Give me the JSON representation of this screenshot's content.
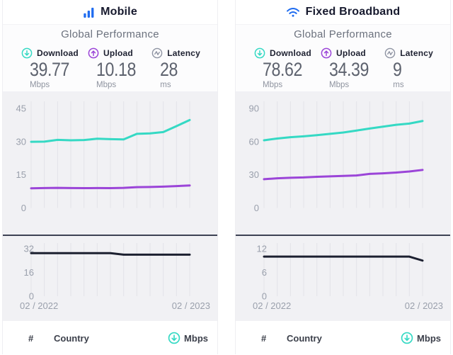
{
  "theme": {
    "brand_blue": "#1f6cf0",
    "download_teal": "#35d9c4",
    "upload_purple": "#9b45d8",
    "latency_gray": "#8e93a2",
    "line_dark": "#1c2030",
    "gridline": "#e3e3e9",
    "axis_label": "#9aa0ac"
  },
  "cards": [
    {
      "title": "Mobile",
      "subtitle": "Global Performance",
      "stats": [
        {
          "label": "Download",
          "value": "39.77",
          "unit": "Mbps"
        },
        {
          "label": "Upload",
          "value": "10.18",
          "unit": "Mbps"
        },
        {
          "label": "Latency",
          "value": "28",
          "unit": "ms"
        }
      ],
      "table": {
        "rank": "#",
        "country": "Country",
        "metric": "Mbps"
      }
    },
    {
      "title": "Fixed Broadband",
      "subtitle": "Global Performance",
      "stats": [
        {
          "label": "Download",
          "value": "78.62",
          "unit": "Mbps"
        },
        {
          "label": "Upload",
          "value": "34.39",
          "unit": "Mbps"
        },
        {
          "label": "Latency",
          "value": "9",
          "unit": "ms"
        }
      ],
      "table": {
        "rank": "#",
        "country": "Country",
        "metric": "Mbps"
      }
    }
  ],
  "chart_data": [
    {
      "id": "mobile-speed",
      "type": "line",
      "points": 13,
      "x_first": "02 / 2022",
      "x_last": "02 / 2023",
      "x_labels": [],
      "ylim": [
        0,
        45
      ],
      "yticks": [
        0,
        15,
        30,
        45
      ],
      "grid": "vertical-only",
      "legend": "none",
      "series": [
        {
          "name": "Download (Mbps)",
          "color": "#35d9c4",
          "values": [
            29.9,
            30.0,
            30.8,
            30.6,
            30.7,
            31.3,
            31.1,
            31.0,
            33.5,
            33.7,
            34.3,
            37.0,
            39.77
          ]
        },
        {
          "name": "Upload (Mbps)",
          "color": "#9b45d8",
          "values": [
            8.9,
            9.0,
            9.1,
            9.0,
            8.95,
            9.0,
            8.95,
            9.1,
            9.4,
            9.5,
            9.65,
            9.9,
            10.18
          ]
        }
      ]
    },
    {
      "id": "mobile-latency",
      "type": "line",
      "points": 13,
      "x_labels": [
        "02 / 2022",
        "02 / 2023"
      ],
      "ylim": [
        0,
        32
      ],
      "yticks": [
        0,
        16,
        32
      ],
      "grid": "vertical-only",
      "legend": "none",
      "series": [
        {
          "name": "Latency (ms)",
          "color": "#1c2030",
          "values": [
            29,
            29,
            29,
            29,
            29,
            29,
            29,
            28,
            28,
            28,
            28,
            28,
            28
          ]
        }
      ]
    },
    {
      "id": "fixed-speed",
      "type": "line",
      "points": 13,
      "x_first": "02 / 2022",
      "x_last": "02 / 2023",
      "x_labels": [],
      "ylim": [
        0,
        90
      ],
      "yticks": [
        0,
        30,
        60,
        90
      ],
      "grid": "vertical-only",
      "legend": "none",
      "series": [
        {
          "name": "Download (Mbps)",
          "color": "#35d9c4",
          "values": [
            61.2,
            62.8,
            64.0,
            64.8,
            65.8,
            67.0,
            68.2,
            70.0,
            71.8,
            73.5,
            75.2,
            76.3,
            78.62
          ]
        },
        {
          "name": "Upload (Mbps)",
          "color": "#9b45d8",
          "values": [
            26.0,
            26.8,
            27.3,
            27.6,
            28.2,
            28.6,
            29.0,
            29.4,
            30.8,
            31.3,
            32.0,
            33.0,
            34.39
          ]
        }
      ]
    },
    {
      "id": "fixed-latency",
      "type": "line",
      "points": 13,
      "x_labels": [
        "02 / 2022",
        "02 / 2023"
      ],
      "ylim": [
        0,
        12
      ],
      "yticks": [
        0,
        6,
        12
      ],
      "grid": "vertical-only",
      "legend": "none",
      "series": [
        {
          "name": "Latency (ms)",
          "color": "#1c2030",
          "values": [
            10,
            10,
            10,
            10,
            10,
            10,
            10,
            10,
            10,
            10,
            10,
            10,
            9
          ]
        }
      ]
    }
  ]
}
